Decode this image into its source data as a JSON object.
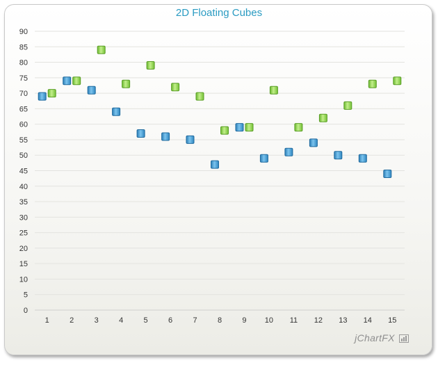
{
  "chart_data": {
    "type": "scatter",
    "title": "2D Floating Cubes",
    "xlabel": "",
    "ylabel": "",
    "categories": [
      "1",
      "2",
      "3",
      "4",
      "5",
      "6",
      "7",
      "8",
      "9",
      "10",
      "11",
      "12",
      "13",
      "14",
      "15"
    ],
    "ylim": [
      0,
      90
    ],
    "yticks": [
      0,
      5,
      10,
      15,
      20,
      25,
      30,
      35,
      40,
      45,
      50,
      55,
      60,
      65,
      70,
      75,
      80,
      85,
      90
    ],
    "grid": true,
    "legend": "none",
    "series": [
      {
        "color": "#4aa3d8",
        "values": [
          69,
          74,
          71,
          64,
          57,
          56,
          55,
          47,
          59,
          49,
          51,
          54,
          50,
          49,
          44
        ]
      },
      {
        "color": "#8fd14f",
        "values": [
          70,
          74,
          84,
          73,
          79,
          72,
          69,
          58,
          59,
          71,
          59,
          62,
          66,
          73,
          74
        ]
      }
    ]
  },
  "watermark": {
    "brand": "jChartFX"
  }
}
